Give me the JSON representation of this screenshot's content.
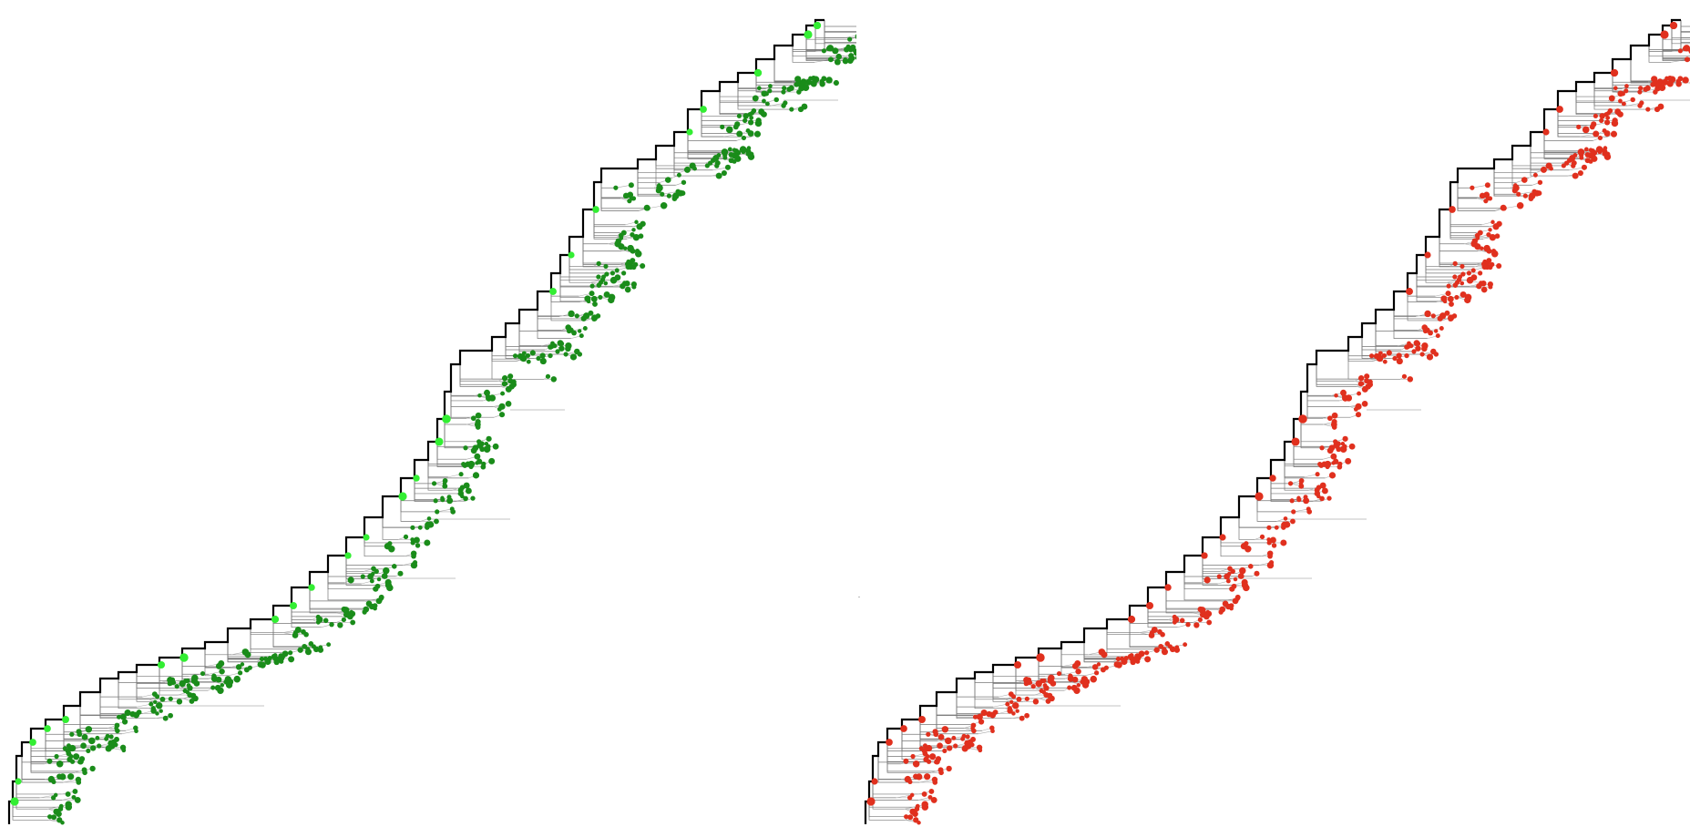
{
  "figure": {
    "panels": [
      {
        "id": "left",
        "node_color": "#1a8c1a",
        "highlight_color": "#33ee33",
        "trunk_color": "#000000",
        "branch_color": "#777777"
      },
      {
        "id": "right",
        "node_color": "#e0301e",
        "highlight_color": "#e0301e",
        "trunk_color": "#000000",
        "branch_color": "#777777"
      }
    ]
  }
}
